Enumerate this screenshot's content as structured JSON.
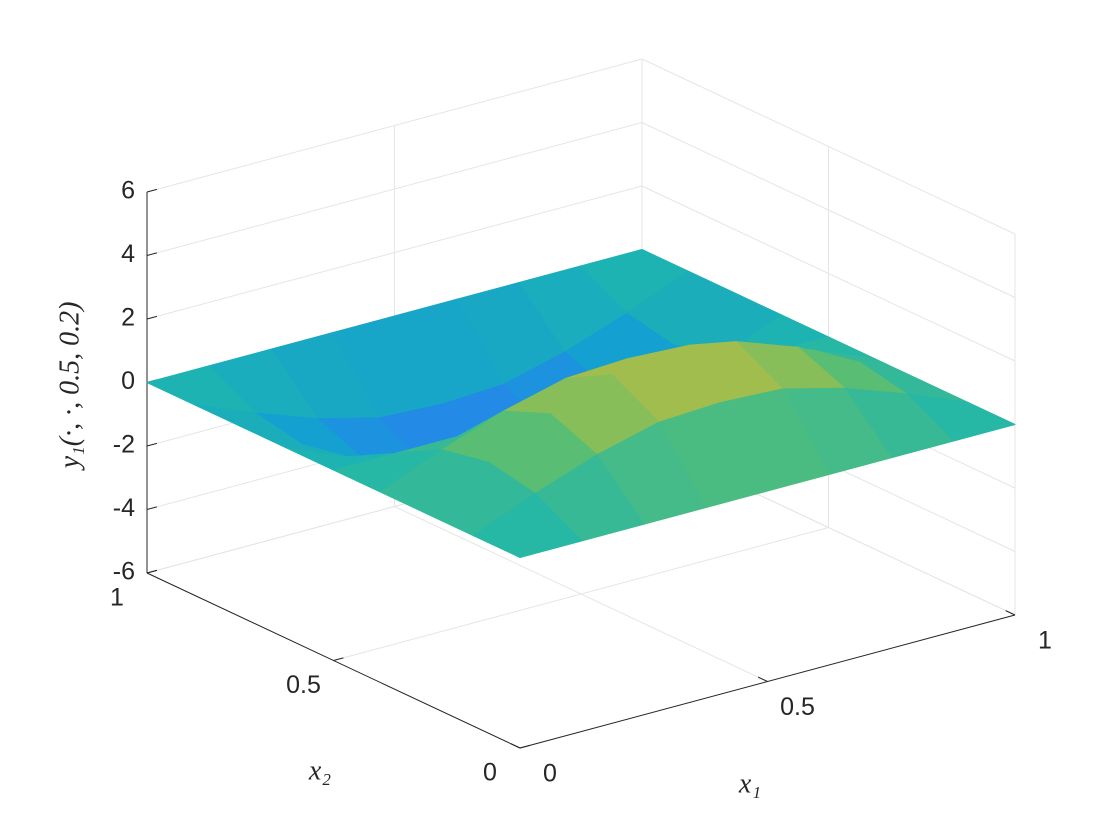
{
  "chart_data": {
    "type": "surface",
    "xlabel": "x₁",
    "ylabel": "x₂",
    "zlabel": "y₁(·, ·, 0.5, 0.2)",
    "x": [
      0,
      0.125,
      0.25,
      0.375,
      0.5,
      0.625,
      0.75,
      0.875,
      1
    ],
    "y": [
      0,
      0.125,
      0.25,
      0.375,
      0.5,
      0.625,
      0.75,
      0.875,
      1
    ],
    "z": [
      [
        0,
        0,
        0,
        0,
        0,
        0,
        0,
        0,
        0
      ],
      [
        0,
        0.8,
        1.5,
        2,
        2.1,
        2,
        1.5,
        0.8,
        0
      ],
      [
        0,
        1.1,
        2.1,
        2.8,
        3,
        2.8,
        2.1,
        1.1,
        0
      ],
      [
        0,
        0.8,
        1.5,
        2,
        2.1,
        2,
        1.5,
        0.8,
        0
      ],
      [
        0,
        0,
        0,
        0,
        0,
        0,
        0,
        0,
        0
      ],
      [
        0,
        -0.8,
        -1.5,
        -2,
        -2.1,
        -2,
        -1.5,
        -0.8,
        0
      ],
      [
        0,
        -1.1,
        -2.1,
        -2.8,
        -3,
        -2.8,
        -2.1,
        -1.1,
        0
      ],
      [
        0,
        -0.8,
        -1.5,
        -2,
        -2.1,
        -2,
        -1.5,
        -0.8,
        0
      ],
      [
        0,
        0,
        0,
        0,
        0,
        0,
        0,
        0,
        0
      ]
    ],
    "xlim": [
      0,
      1
    ],
    "ylim": [
      0,
      1
    ],
    "zlim": [
      -6,
      6
    ],
    "xticks": [
      0,
      0.5,
      1
    ],
    "yticks": [
      0,
      0.5,
      1
    ],
    "zticks": [
      -6,
      -4,
      -2,
      0,
      2,
      4,
      6
    ],
    "grid": true,
    "colormap": [
      "#3e26a8",
      "#4546e7",
      "#2c7ff0",
      "#139ed4",
      "#1fb6ae",
      "#5ebf6e",
      "#c4bc3c",
      "#fcbe38",
      "#f9fb0e"
    ]
  }
}
